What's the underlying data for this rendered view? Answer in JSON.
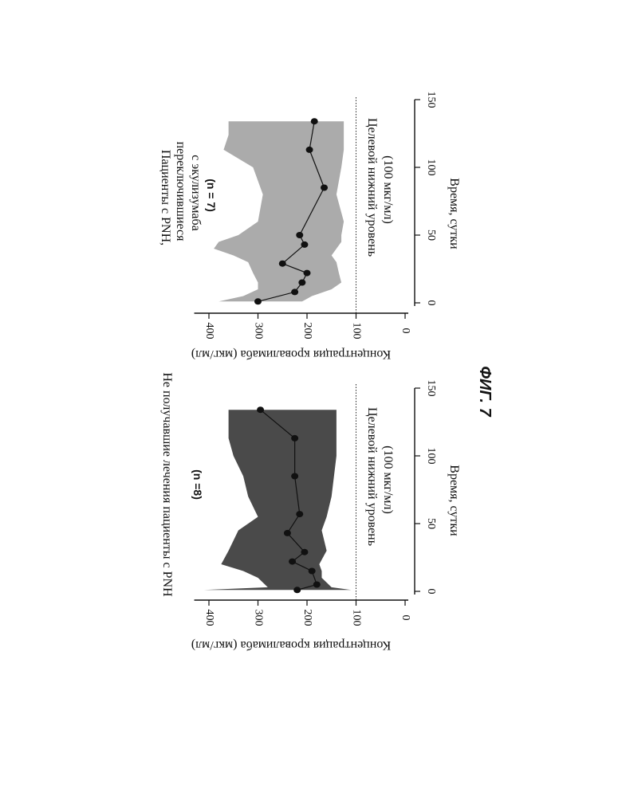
{
  "figure_label": "ФИГ. 7",
  "chart_data": [
    {
      "type": "line",
      "title": "Не получавшие лечения пациенты с PNH",
      "subtitle": "(n =8)",
      "xlabel": "Время, сутки",
      "ylabel": "Концентрация кровалимаба (мкг/мл)",
      "xlim": [
        0,
        150
      ],
      "ylim": [
        0,
        450
      ],
      "xticks": [
        0,
        50,
        100,
        150
      ],
      "yticks": [
        0,
        100,
        200,
        300,
        400
      ],
      "grid": false,
      "reference_line": {
        "y": 100,
        "label": "Целевой нижний уровень",
        "label2": "(100 мкг/мл)",
        "style": "dotted"
      },
      "series": [
        {
          "x": [
            1,
            5,
            15,
            22,
            29,
            43,
            57,
            85,
            113,
            134
          ],
          "y": [
            220,
            180,
            190,
            230,
            205,
            240,
            215,
            225,
            225,
            295
          ],
          "color": "#111111"
        }
      ],
      "band": {
        "x": [
          1,
          3,
          10,
          15,
          20,
          30,
          45,
          55,
          70,
          85,
          100,
          113,
          124,
          134
        ],
        "upper": [
          410,
          280,
          300,
          330,
          375,
          360,
          340,
          300,
          320,
          330,
          350,
          360,
          360,
          360
        ],
        "lower": [
          110,
          150,
          170,
          170,
          175,
          160,
          170,
          160,
          150,
          145,
          140,
          140,
          140,
          140
        ],
        "color": "#4a4a4a"
      }
    },
    {
      "type": "line",
      "title": "Пациенты с PNH, переключившиеся с экулизумаба",
      "subtitle": "(n = 7)",
      "xlabel": "Время, сутки",
      "ylabel": "Концентрация кровалимаба (мкг/мл)",
      "xlim": [
        0,
        150
      ],
      "ylim": [
        0,
        450
      ],
      "xticks": [
        0,
        50,
        100,
        150
      ],
      "yticks": [
        0,
        100,
        200,
        300,
        400
      ],
      "grid": false,
      "reference_line": {
        "y": 100,
        "label": "Целевой нижний уровень",
        "label2": "(100 мкг/мл)",
        "style": "dotted"
      },
      "series": [
        {
          "x": [
            1,
            8,
            15,
            22,
            29,
            43,
            50,
            85,
            113,
            134
          ],
          "y": [
            300,
            225,
            210,
            200,
            250,
            205,
            215,
            165,
            195,
            185
          ],
          "color": "#111111"
        }
      ],
      "band": {
        "x": [
          1,
          5,
          10,
          15,
          22,
          30,
          35,
          40,
          45,
          50,
          60,
          80,
          100,
          113,
          124,
          134
        ],
        "upper": [
          380,
          330,
          300,
          300,
          310,
          320,
          350,
          390,
          380,
          340,
          300,
          290,
          310,
          370,
          360,
          360
        ],
        "lower": [
          210,
          190,
          150,
          130,
          135,
          140,
          150,
          140,
          130,
          130,
          125,
          140,
          130,
          125,
          125,
          125
        ],
        "color": "#ababab"
      }
    }
  ]
}
